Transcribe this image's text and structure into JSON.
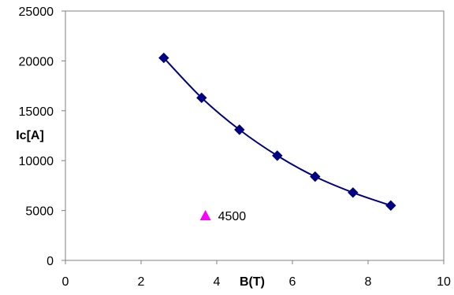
{
  "chart_data": {
    "type": "scatter",
    "xlabel": "B(T)",
    "ylabel": "Ic[A]",
    "xlim": [
      0,
      10
    ],
    "ylim": [
      0,
      25000
    ],
    "x_ticks": [
      "0",
      "2",
      "4",
      "6",
      "8",
      "10"
    ],
    "y_ticks": [
      "0",
      "5000",
      "10000",
      "15000",
      "20000",
      "25000"
    ],
    "grid": false,
    "series": [
      {
        "marker": "diamond",
        "color": "#000080",
        "line": "smooth",
        "points": [
          {
            "x": 2.6,
            "y": 20300
          },
          {
            "x": 3.6,
            "y": 16300
          },
          {
            "x": 4.6,
            "y": 13100
          },
          {
            "x": 5.6,
            "y": 10500
          },
          {
            "x": 6.6,
            "y": 8400
          },
          {
            "x": 7.6,
            "y": 6800
          },
          {
            "x": 8.6,
            "y": 5500
          }
        ]
      },
      {
        "marker": "triangle",
        "color": "#ff00ff",
        "points": [
          {
            "x": 3.7,
            "y": 4500
          }
        ]
      }
    ],
    "annotations": [
      {
        "text": "4500",
        "x": 3.7,
        "y": 4500
      }
    ]
  }
}
